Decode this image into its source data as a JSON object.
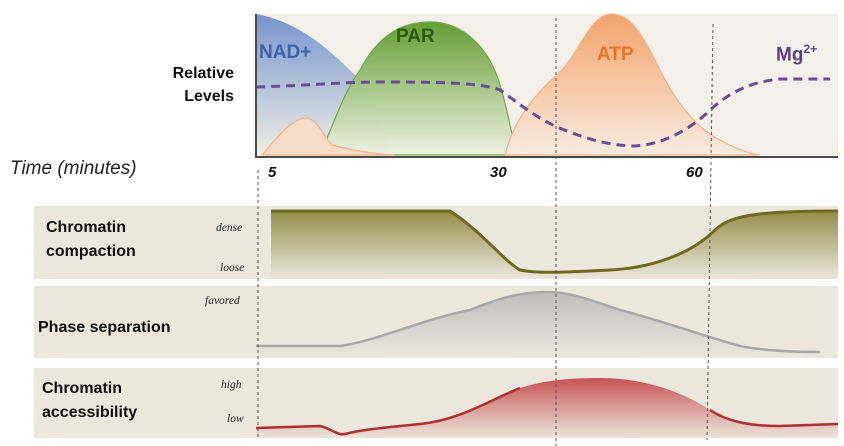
{
  "top_panel": {
    "ylabel_line1": "Relative",
    "ylabel_line2": "Levels",
    "time_label": "Time (minutes)",
    "ticks": [
      "5",
      "30",
      "60"
    ],
    "molecules": {
      "nad": "NAD+",
      "par": "PAR",
      "atp": "ATP",
      "mg_base": "Mg",
      "mg_sup": "2+"
    }
  },
  "panels": [
    {
      "title_line1": "Chromatin",
      "title_line2": "compaction",
      "level_high": "dense",
      "level_low": "loose"
    },
    {
      "title_line1": "Phase separation",
      "level_high": "favored"
    },
    {
      "title_line1": "Chromatin",
      "title_line2": "accessibility",
      "level_high": "high",
      "level_low": "low"
    }
  ],
  "colors": {
    "nad": "#5b7fbf",
    "par": "#6aa63a",
    "atp": "#f0884a",
    "mg": "#6a4c93",
    "compaction": "#7f7a30",
    "phase": "#a8a8a8",
    "accessibility": "#c0393b",
    "band": "#ebe7dc"
  }
}
